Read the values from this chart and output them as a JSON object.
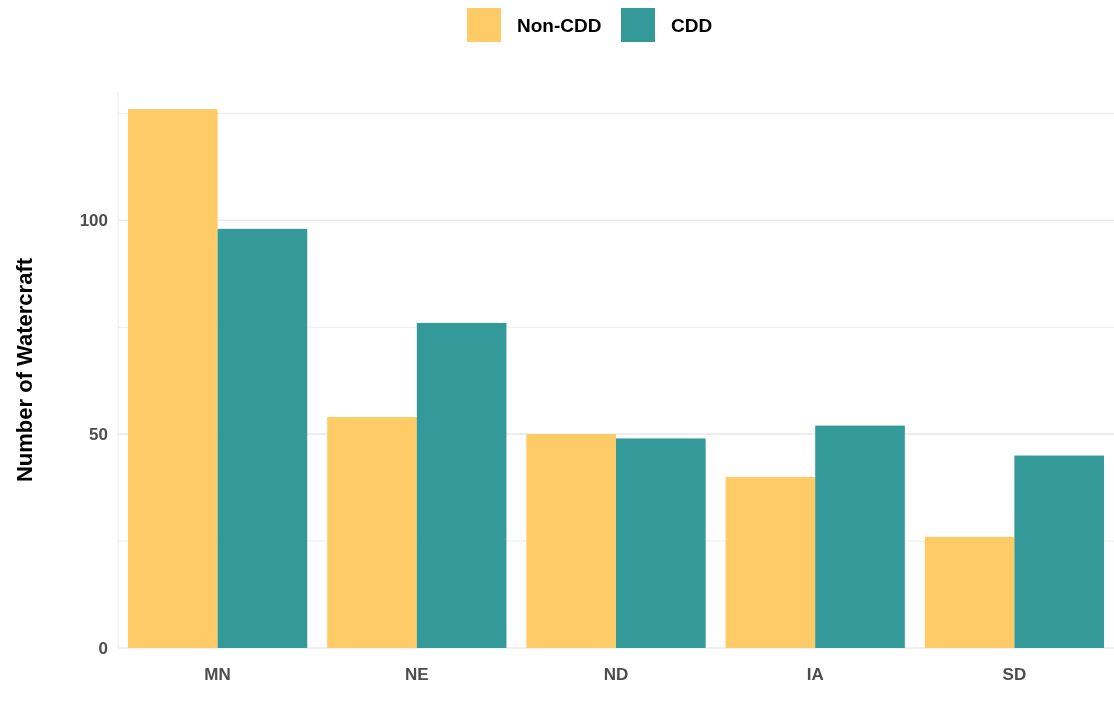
{
  "chart_data": {
    "type": "bar",
    "ylabel": "Number of Watercraft",
    "categories": [
      "MN",
      "NE",
      "ND",
      "IA",
      "SD"
    ],
    "series": [
      {
        "name": "Non-CDD",
        "color": "#fecb66",
        "values": [
          126,
          54,
          50,
          40,
          26
        ]
      },
      {
        "name": "CDD",
        "color": "#339999",
        "values": [
          98,
          76,
          49,
          52,
          45
        ]
      }
    ],
    "ylim": [
      0,
      130
    ],
    "yticks": [
      0,
      {
        "value": 25,
        "label": null
      },
      50,
      {
        "value": 75,
        "label": null
      },
      100,
      {
        "value": 125,
        "label": null
      }
    ],
    "grid": "y",
    "legend": "top"
  }
}
